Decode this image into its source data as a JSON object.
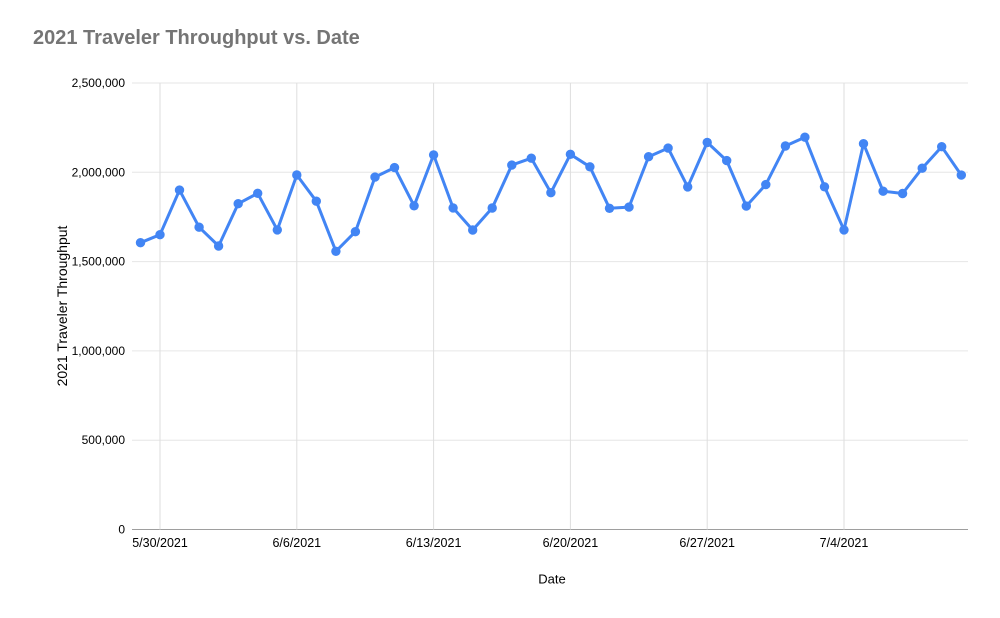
{
  "chart_data": {
    "type": "line",
    "title": "2021 Traveler Throughput vs. Date",
    "xlabel": "Date",
    "ylabel": "2021 Traveler Throughput",
    "series_name": "2021 Traveler Throughput",
    "x": [
      "5/29/2021",
      "5/30/2021",
      "5/31/2021",
      "6/1/2021",
      "6/2/2021",
      "6/3/2021",
      "6/4/2021",
      "6/5/2021",
      "6/6/2021",
      "6/7/2021",
      "6/8/2021",
      "6/9/2021",
      "6/10/2021",
      "6/11/2021",
      "6/12/2021",
      "6/13/2021",
      "6/14/2021",
      "6/15/2021",
      "6/16/2021",
      "6/17/2021",
      "6/18/2021",
      "6/19/2021",
      "6/20/2021",
      "6/21/2021",
      "6/22/2021",
      "6/23/2021",
      "6/24/2021",
      "6/25/2021",
      "6/26/2021",
      "6/27/2021",
      "6/28/2021",
      "6/29/2021",
      "6/30/2021",
      "7/1/2021",
      "7/2/2021",
      "7/3/2021",
      "7/4/2021",
      "7/5/2021",
      "7/6/2021",
      "7/7/2021",
      "7/8/2021",
      "7/9/2021",
      "7/10/2021"
    ],
    "values": [
      1605810,
      1650454,
      1900142,
      1692740,
      1587342,
      1824250,
      1882227,
      1677445,
      1984658,
      1837963,
      1557576,
      1667348,
      1973167,
      2026410,
      1812430,
      2097433,
      1800648,
      1677189,
      1799861,
      2040247,
      2079192,
      1885947,
      2100761,
      2030557,
      1798182,
      1805200,
      2087568,
      2135338,
      1918166,
      2167380,
      2065441,
      1810825,
      1931206,
      2147090,
      2196411,
      1918579,
      1677306,
      2160147,
      1894445,
      1881220,
      2022858,
      2143556,
      1984560
    ],
    "ylim": [
      0,
      2500000
    ],
    "yticks": [
      {
        "value": 0,
        "label": "0"
      },
      {
        "value": 500000,
        "label": "500,000"
      },
      {
        "value": 1000000,
        "label": "1,000,000"
      },
      {
        "value": 1500000,
        "label": "1,500,000"
      },
      {
        "value": 2000000,
        "label": "2,000,000"
      },
      {
        "value": 2500000,
        "label": "2,500,000"
      }
    ],
    "xticks": [
      {
        "index": 1,
        "label": "5/30/2021"
      },
      {
        "index": 8,
        "label": "6/6/2021"
      },
      {
        "index": 15,
        "label": "6/13/2021"
      },
      {
        "index": 22,
        "label": "6/20/2021"
      },
      {
        "index": 29,
        "label": "6/27/2021"
      },
      {
        "index": 36,
        "label": "7/4/2021"
      }
    ],
    "grid": true,
    "legend": "none",
    "marker": "circle"
  },
  "colors": {
    "series_line": "#4285f4",
    "marker_fill": "#4285f4",
    "title_text": "#757575",
    "axis_text": "#000000",
    "gridline": "#e6e6e6",
    "vertical_gridline": "#dedede",
    "baseline": "#9e9e9e",
    "background": "#ffffff"
  }
}
